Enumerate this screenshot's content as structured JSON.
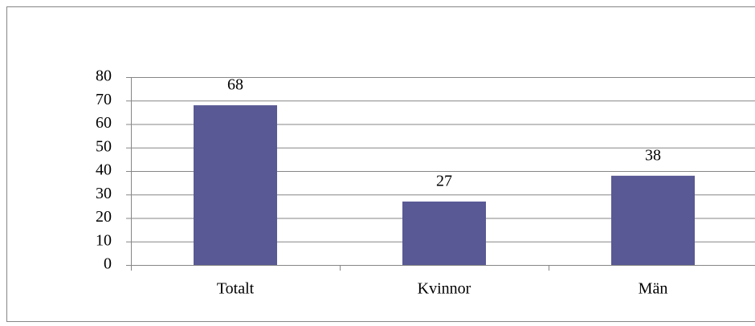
{
  "chart_data": {
    "type": "bar",
    "categories": [
      "Totalt",
      "Kvinnor",
      "Män"
    ],
    "values": [
      68,
      27,
      38
    ],
    "color": "#595995",
    "ylim": [
      0,
      80
    ],
    "yticks": [
      0,
      10,
      20,
      30,
      40,
      50,
      60,
      70,
      80
    ],
    "grid": true
  }
}
